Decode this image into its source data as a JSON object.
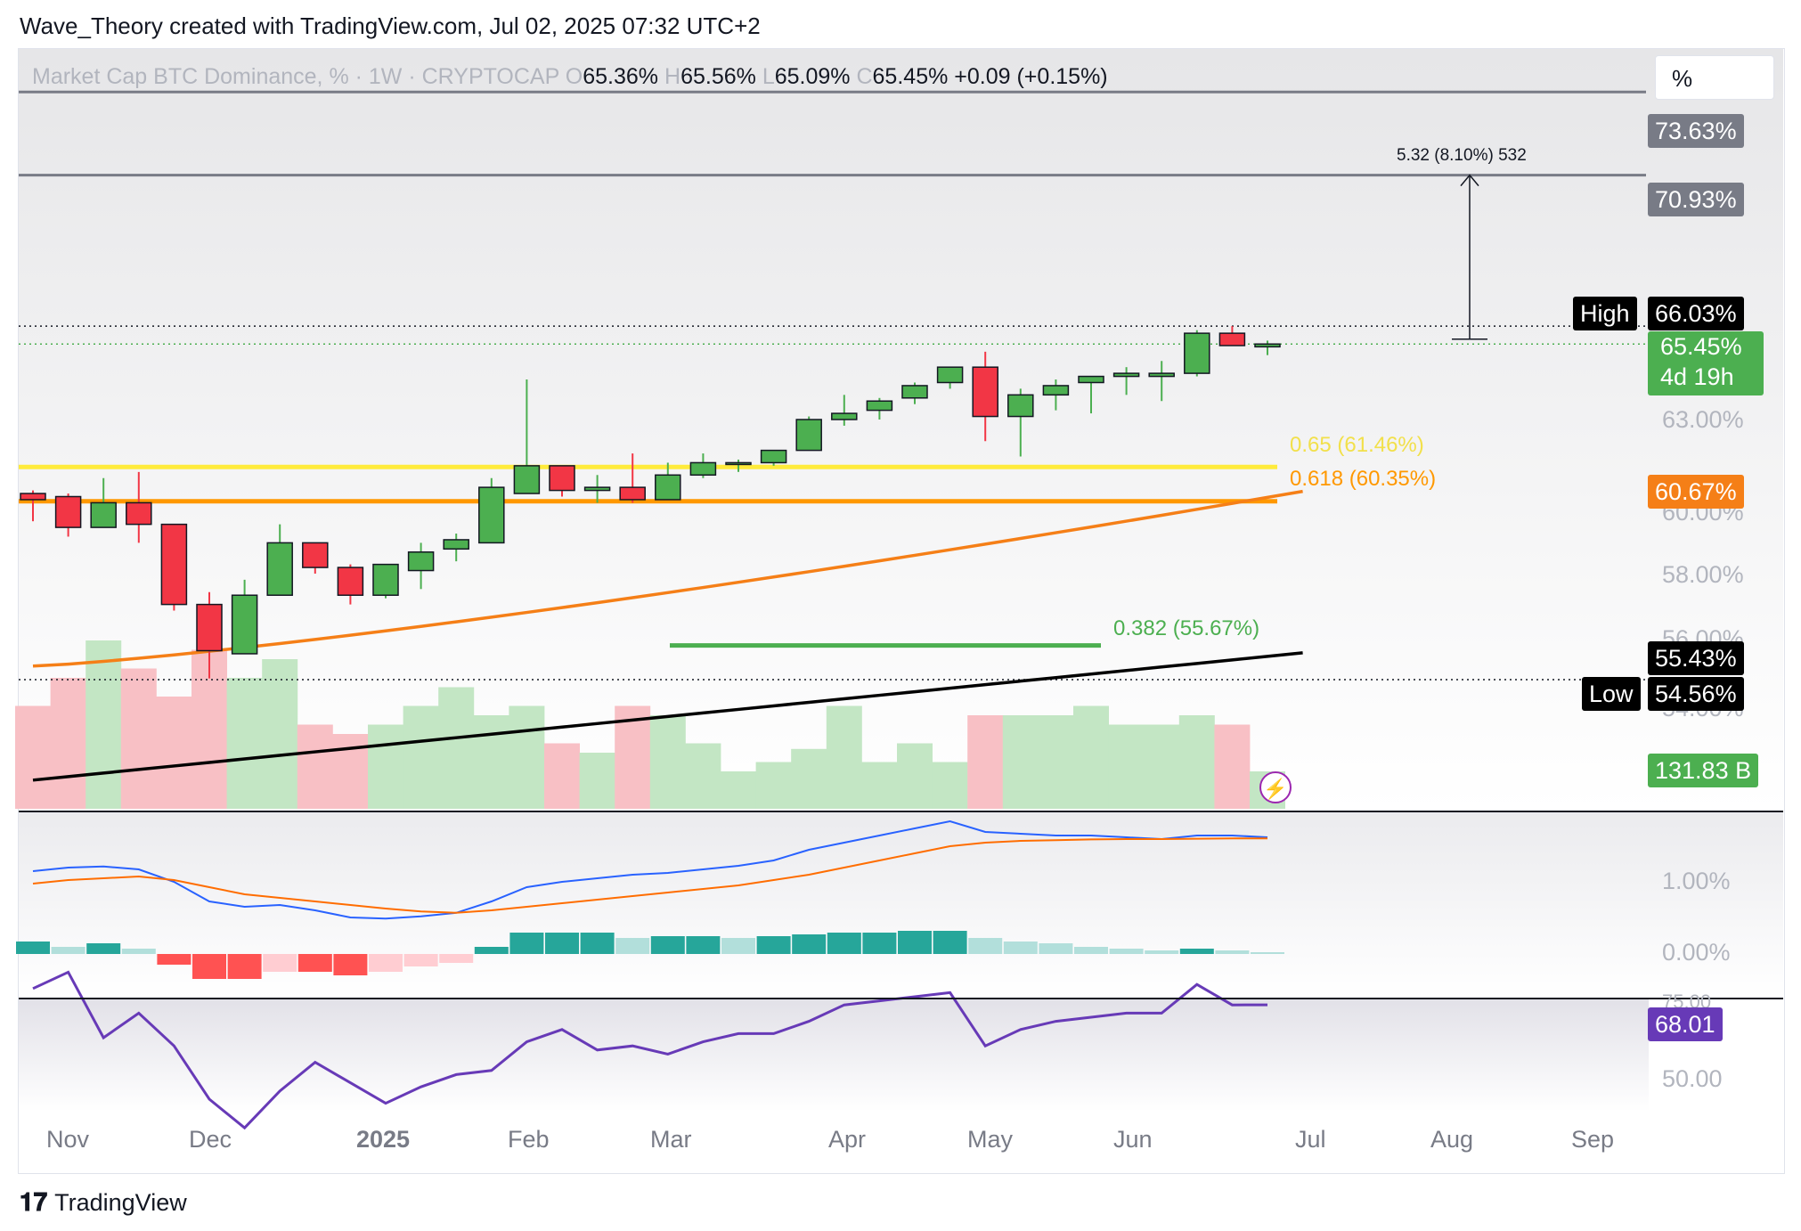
{
  "caption": "Wave_Theory created with TradingView.com, Jul 02, 2025 07:32 UTC+2",
  "legend": {
    "symbol": "Market Cap BTC Dominance, % · 1W · CRYPTOCAP",
    "o_label": "O",
    "o": "65.36%",
    "h_label": "H",
    "h": "65.56%",
    "l_label": "L",
    "l": "65.09%",
    "c_label": "C",
    "c": "65.45%",
    "change": "+0.09 (+0.15%)"
  },
  "unit_button": "%",
  "measure_label": "5.32 (8.10%) 532",
  "price_axis": {
    "tag_7363": "73.63%",
    "tag_7093": "70.93%",
    "high_label": "High",
    "high_value": "66.03%",
    "last_value": "65.45%",
    "countdown": "4d 19h",
    "t63": "63.00%",
    "tag_6067": "60.67%",
    "t60": "60.00%",
    "t58": "58.00%",
    "t56": "56.00%",
    "tag_5543": "55.43%",
    "low_label": "Low",
    "low_value": "54.56%",
    "t54": "54.00%",
    "volume": "131.83 B",
    "macd_1": "1.00%",
    "macd_0": "0.00%",
    "rsi_75": "75.00",
    "rsi_tag": "68.01",
    "rsi_50": "50.00"
  },
  "fib": {
    "f065": "0.65 (61.46%)",
    "f0618": "0.618 (60.35%)",
    "f0382": "0.382 (55.67%)"
  },
  "time_axis": [
    "Nov",
    "Dec",
    "2025",
    "Feb",
    "Mar",
    "Apr",
    "May",
    "Jun",
    "Jul",
    "Aug",
    "Sep"
  ],
  "footer": "TradingView",
  "colors": {
    "up": "#4caf50",
    "down": "#f23645",
    "ma_orange": "#f57f17",
    "fib_yellow": "#ffeb3b",
    "fib_orange": "#ff9800",
    "fib_green": "#4caf50",
    "rsi": "#673ab7",
    "macd_line": "#2962ff",
    "signal_line": "#ff6d00"
  },
  "chart_data": {
    "type": "candlestick",
    "title": "Market Cap BTC Dominance, % · 1W · CRYPTOCAP",
    "candles": [
      {
        "o": 60.6,
        "h": 60.7,
        "l": 59.7,
        "c": 60.4
      },
      {
        "o": 60.5,
        "h": 60.6,
        "l": 59.2,
        "c": 59.5
      },
      {
        "o": 59.5,
        "h": 61.1,
        "l": 59.5,
        "c": 60.3
      },
      {
        "o": 60.3,
        "h": 61.3,
        "l": 59.0,
        "c": 59.6
      },
      {
        "o": 59.6,
        "h": 59.6,
        "l": 56.8,
        "c": 57.0
      },
      {
        "o": 57.0,
        "h": 57.4,
        "l": 54.6,
        "c": 55.5
      },
      {
        "o": 55.4,
        "h": 57.8,
        "l": 55.4,
        "c": 57.3
      },
      {
        "o": 57.3,
        "h": 59.6,
        "l": 57.3,
        "c": 59.0
      },
      {
        "o": 59.0,
        "h": 59.0,
        "l": 58.0,
        "c": 58.2
      },
      {
        "o": 58.2,
        "h": 58.3,
        "l": 57.0,
        "c": 57.3
      },
      {
        "o": 57.3,
        "h": 58.3,
        "l": 57.2,
        "c": 58.3
      },
      {
        "o": 58.1,
        "h": 59.0,
        "l": 57.5,
        "c": 58.7
      },
      {
        "o": 58.8,
        "h": 59.3,
        "l": 58.4,
        "c": 59.1
      },
      {
        "o": 59.0,
        "h": 61.1,
        "l": 59.0,
        "c": 60.8
      },
      {
        "o": 60.6,
        "h": 64.3,
        "l": 60.6,
        "c": 61.5
      },
      {
        "o": 61.5,
        "h": 61.5,
        "l": 60.5,
        "c": 60.7
      },
      {
        "o": 60.7,
        "h": 61.2,
        "l": 60.3,
        "c": 60.8
      },
      {
        "o": 60.8,
        "h": 61.9,
        "l": 60.3,
        "c": 60.4
      },
      {
        "o": 60.4,
        "h": 61.6,
        "l": 60.4,
        "c": 61.2
      },
      {
        "o": 61.2,
        "h": 61.9,
        "l": 61.1,
        "c": 61.6
      },
      {
        "o": 61.6,
        "h": 61.7,
        "l": 61.3,
        "c": 61.6
      },
      {
        "o": 61.6,
        "h": 62.0,
        "l": 61.5,
        "c": 62.0
      },
      {
        "o": 62.0,
        "h": 63.1,
        "l": 62.0,
        "c": 63.0
      },
      {
        "o": 63.0,
        "h": 63.8,
        "l": 62.8,
        "c": 63.2
      },
      {
        "o": 63.3,
        "h": 63.7,
        "l": 63.0,
        "c": 63.6
      },
      {
        "o": 63.7,
        "h": 64.2,
        "l": 63.5,
        "c": 64.1
      },
      {
        "o": 64.2,
        "h": 64.7,
        "l": 64.0,
        "c": 64.7
      },
      {
        "o": 64.7,
        "h": 65.2,
        "l": 62.3,
        "c": 63.1
      },
      {
        "o": 63.1,
        "h": 64.0,
        "l": 61.8,
        "c": 63.8
      },
      {
        "o": 63.8,
        "h": 64.3,
        "l": 63.3,
        "c": 64.1
      },
      {
        "o": 64.2,
        "h": 64.4,
        "l": 63.2,
        "c": 64.4
      },
      {
        "o": 64.4,
        "h": 64.7,
        "l": 63.8,
        "c": 64.5
      },
      {
        "o": 64.4,
        "h": 64.9,
        "l": 63.6,
        "c": 64.5
      },
      {
        "o": 64.5,
        "h": 65.9,
        "l": 64.4,
        "c": 65.8
      },
      {
        "o": 65.8,
        "h": 66.03,
        "l": 65.4,
        "c": 65.4
      },
      {
        "o": 65.36,
        "h": 65.56,
        "l": 65.09,
        "c": 65.45
      }
    ],
    "fib_levels": [
      {
        "label": "0.65",
        "value": 61.46
      },
      {
        "label": "0.618",
        "value": 60.35
      },
      {
        "label": "0.382",
        "value": 55.67
      }
    ],
    "horizontal_levels": [
      73.63,
      70.93,
      66.03,
      54.56
    ],
    "ma_orange_end": 60.67,
    "ma_black_end": 55.43,
    "volume_last": "131.83 B",
    "rsi_last": 68.01
  }
}
